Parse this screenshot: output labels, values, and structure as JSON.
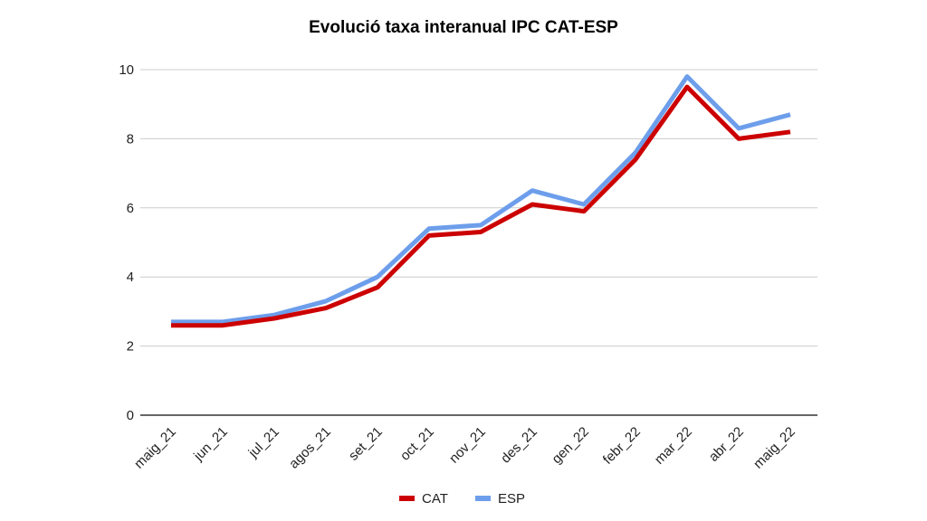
{
  "chart_data": {
    "type": "line",
    "title": "Evolució taxa interanual IPC CAT-ESP",
    "xlabel": "",
    "ylabel": "",
    "categories": [
      "maig_21",
      "jun_21",
      "jul_21",
      "agos_21",
      "set_21",
      "oct_21",
      "nov_21",
      "des_21",
      "gen_22",
      "febr_22",
      "mar_22",
      "abr_22",
      "maig_22"
    ],
    "ylim": [
      0,
      10
    ],
    "yticks": [
      "0",
      "2",
      "4",
      "6",
      "8",
      "10"
    ],
    "grid": true,
    "legend_position": "bottom",
    "series": [
      {
        "name": "ESP",
        "color": "#6d9eeb",
        "values": [
          2.7,
          2.7,
          2.9,
          3.3,
          4.0,
          5.4,
          5.5,
          6.5,
          6.1,
          7.6,
          9.8,
          8.3,
          8.7
        ]
      },
      {
        "name": "CAT",
        "color": "#cc0000",
        "values": [
          2.6,
          2.6,
          2.8,
          3.1,
          3.7,
          5.2,
          5.3,
          6.1,
          5.9,
          7.4,
          9.5,
          8.0,
          8.2
        ]
      }
    ],
    "legend": [
      {
        "name": "CAT",
        "color": "#cc0000"
      },
      {
        "name": "ESP",
        "color": "#6d9eeb"
      }
    ]
  }
}
